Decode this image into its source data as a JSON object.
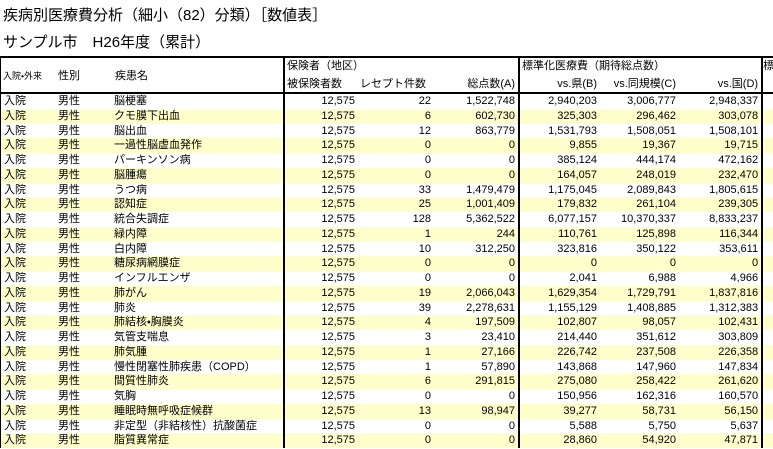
{
  "page": {
    "title": "疾病別医療費分析（細小（82）分類）［数値表］",
    "subtitle": "サンプル市　H26年度（累計）"
  },
  "colors": {
    "row_alternate": "#FFFFCC",
    "border": "#000000",
    "background": "#FFFFFF",
    "text": "#000000"
  },
  "table": {
    "header": {
      "col_admission": "入院・外来",
      "col_gender": "性別",
      "col_disease": "疾患名",
      "group_insurer": "保険者（地区）",
      "col_insured": "被保険者数",
      "col_receipts": "レセプト件数",
      "col_total_points": "総点数(A)",
      "group_standardized": "標準化医療費（期待総点数）",
      "col_vs_pref": "vs.県(B)",
      "col_vs_same_scale": "vs.同規模(C)",
      "col_vs_national": "vs.国(D)",
      "group_clipped": "標"
    },
    "rows": [
      {
        "admission": "入院",
        "gender": "男性",
        "disease": "脳梗塞",
        "insured": "12,575",
        "receipts": "22",
        "total": "1,522,748",
        "vs_pref": "2,940,203",
        "vs_same": "3,006,777",
        "vs_national": "2,948,337"
      },
      {
        "admission": "入院",
        "gender": "男性",
        "disease": "クモ膜下出血",
        "insured": "12,575",
        "receipts": "6",
        "total": "602,730",
        "vs_pref": "325,303",
        "vs_same": "296,462",
        "vs_national": "303,078"
      },
      {
        "admission": "入院",
        "gender": "男性",
        "disease": "脳出血",
        "insured": "12,575",
        "receipts": "12",
        "total": "863,779",
        "vs_pref": "1,531,793",
        "vs_same": "1,508,051",
        "vs_national": "1,508,101"
      },
      {
        "admission": "入院",
        "gender": "男性",
        "disease": "一過性脳虚血発作",
        "insured": "12,575",
        "receipts": "0",
        "total": "0",
        "vs_pref": "9,855",
        "vs_same": "19,367",
        "vs_national": "19,715"
      },
      {
        "admission": "入院",
        "gender": "男性",
        "disease": "パーキンソン病",
        "insured": "12,575",
        "receipts": "0",
        "total": "0",
        "vs_pref": "385,124",
        "vs_same": "444,174",
        "vs_national": "472,162"
      },
      {
        "admission": "入院",
        "gender": "男性",
        "disease": "脳腫瘍",
        "insured": "12,575",
        "receipts": "0",
        "total": "0",
        "vs_pref": "164,057",
        "vs_same": "248,019",
        "vs_national": "232,470"
      },
      {
        "admission": "入院",
        "gender": "男性",
        "disease": "うつ病",
        "insured": "12,575",
        "receipts": "33",
        "total": "1,479,479",
        "vs_pref": "1,175,045",
        "vs_same": "2,089,843",
        "vs_national": "1,805,615"
      },
      {
        "admission": "入院",
        "gender": "男性",
        "disease": "認知症",
        "insured": "12,575",
        "receipts": "25",
        "total": "1,001,409",
        "vs_pref": "179,832",
        "vs_same": "261,104",
        "vs_national": "239,305"
      },
      {
        "admission": "入院",
        "gender": "男性",
        "disease": "統合失調症",
        "insured": "12,575",
        "receipts": "128",
        "total": "5,362,522",
        "vs_pref": "6,077,157",
        "vs_same": "10,370,337",
        "vs_national": "8,833,237"
      },
      {
        "admission": "入院",
        "gender": "男性",
        "disease": "緑内障",
        "insured": "12,575",
        "receipts": "1",
        "total": "244",
        "vs_pref": "110,761",
        "vs_same": "125,898",
        "vs_national": "116,344"
      },
      {
        "admission": "入院",
        "gender": "男性",
        "disease": "白内障",
        "insured": "12,575",
        "receipts": "10",
        "total": "312,250",
        "vs_pref": "323,816",
        "vs_same": "350,122",
        "vs_national": "353,611"
      },
      {
        "admission": "入院",
        "gender": "男性",
        "disease": "糖尿病網膜症",
        "insured": "12,575",
        "receipts": "0",
        "total": "0",
        "vs_pref": "0",
        "vs_same": "0",
        "vs_national": "0"
      },
      {
        "admission": "入院",
        "gender": "男性",
        "disease": "インフルエンザ",
        "insured": "12,575",
        "receipts": "0",
        "total": "0",
        "vs_pref": "2,041",
        "vs_same": "6,988",
        "vs_national": "4,966"
      },
      {
        "admission": "入院",
        "gender": "男性",
        "disease": "肺がん",
        "insured": "12,575",
        "receipts": "19",
        "total": "2,066,043",
        "vs_pref": "1,629,354",
        "vs_same": "1,729,791",
        "vs_national": "1,837,816"
      },
      {
        "admission": "入院",
        "gender": "男性",
        "disease": "肺炎",
        "insured": "12,575",
        "receipts": "39",
        "total": "2,278,631",
        "vs_pref": "1,155,129",
        "vs_same": "1,408,885",
        "vs_national": "1,312,383"
      },
      {
        "admission": "入院",
        "gender": "男性",
        "disease": "肺結核・胸膜炎",
        "insured": "12,575",
        "receipts": "4",
        "total": "197,509",
        "vs_pref": "102,807",
        "vs_same": "98,057",
        "vs_national": "102,431"
      },
      {
        "admission": "入院",
        "gender": "男性",
        "disease": "気管支喘息",
        "insured": "12,575",
        "receipts": "3",
        "total": "23,410",
        "vs_pref": "214,440",
        "vs_same": "351,612",
        "vs_national": "303,809"
      },
      {
        "admission": "入院",
        "gender": "男性",
        "disease": "肺気腫",
        "insured": "12,575",
        "receipts": "1",
        "total": "27,166",
        "vs_pref": "226,742",
        "vs_same": "237,508",
        "vs_national": "226,358"
      },
      {
        "admission": "入院",
        "gender": "男性",
        "disease": "慢性閉塞性肺疾患（COPD）",
        "insured": "12,575",
        "receipts": "1",
        "total": "57,890",
        "vs_pref": "143,868",
        "vs_same": "147,960",
        "vs_national": "147,834"
      },
      {
        "admission": "入院",
        "gender": "男性",
        "disease": "間質性肺炎",
        "insured": "12,575",
        "receipts": "6",
        "total": "291,815",
        "vs_pref": "275,080",
        "vs_same": "258,422",
        "vs_national": "261,620"
      },
      {
        "admission": "入院",
        "gender": "男性",
        "disease": "気胸",
        "insured": "12,575",
        "receipts": "0",
        "total": "0",
        "vs_pref": "150,956",
        "vs_same": "162,316",
        "vs_national": "160,570"
      },
      {
        "admission": "入院",
        "gender": "男性",
        "disease": "睡眠時無呼吸症候群",
        "insured": "12,575",
        "receipts": "13",
        "total": "98,947",
        "vs_pref": "39,277",
        "vs_same": "58,731",
        "vs_national": "56,150"
      },
      {
        "admission": "入院",
        "gender": "男性",
        "disease": "非定型（非結核性）抗酸菌症",
        "insured": "12,575",
        "receipts": "0",
        "total": "0",
        "vs_pref": "5,588",
        "vs_same": "5,750",
        "vs_national": "5,637"
      },
      {
        "admission": "入院",
        "gender": "男性",
        "disease": "脂質異常症",
        "insured": "12,575",
        "receipts": "0",
        "total": "0",
        "vs_pref": "28,860",
        "vs_same": "54,920",
        "vs_national": "47,871"
      }
    ]
  }
}
